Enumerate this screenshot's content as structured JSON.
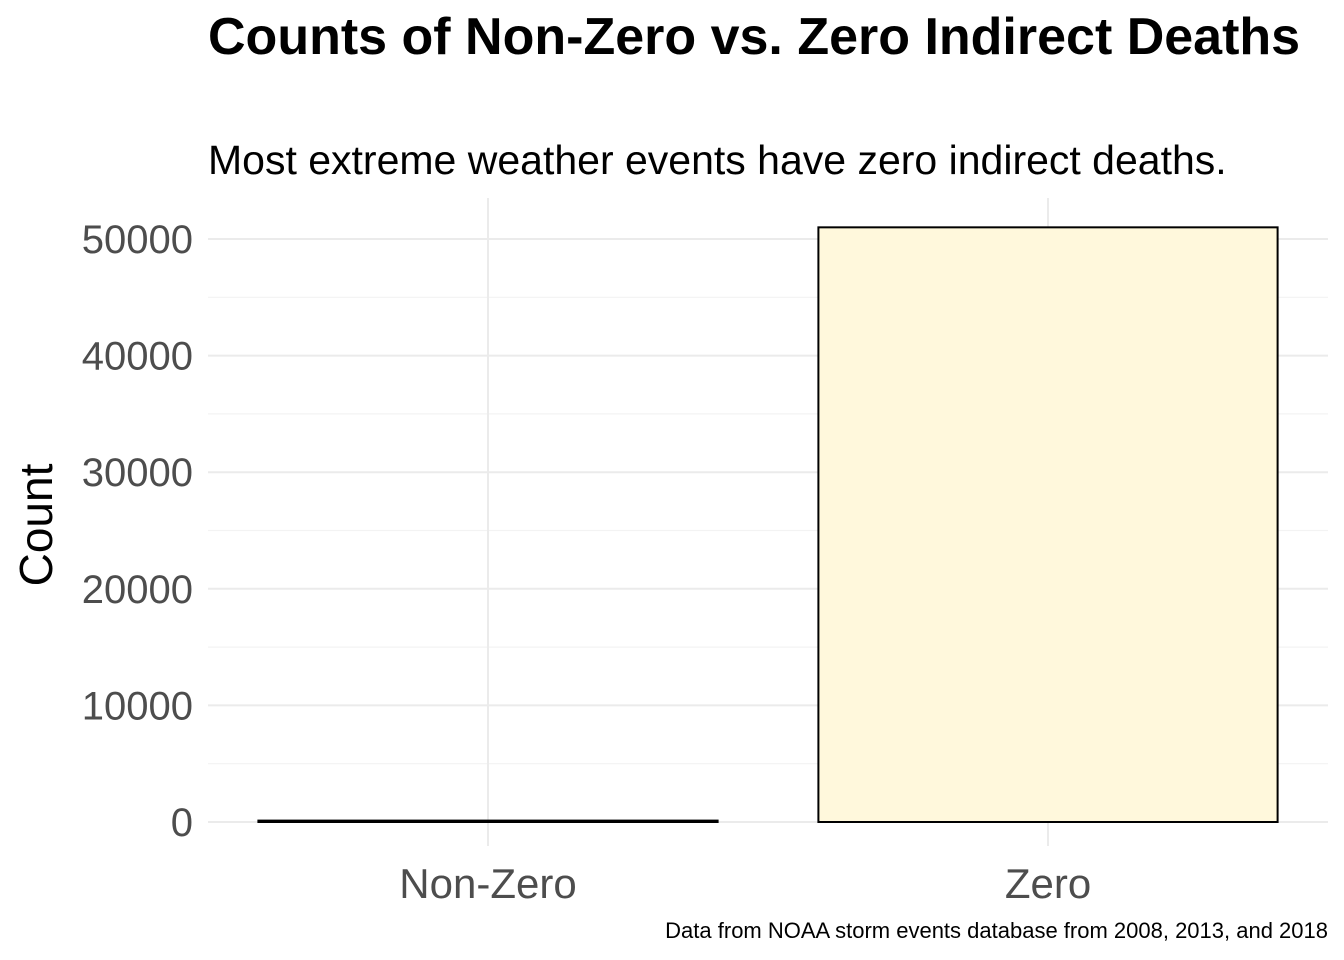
{
  "chart_data": {
    "type": "bar",
    "title": "Counts of Non-Zero vs. Zero Indirect Deaths",
    "subtitle": "Most extreme weather events have zero indirect deaths.",
    "xlabel": "",
    "ylabel": "Count",
    "caption": "Data from NOAA storm events database from 2008, 2013, and 2018",
    "categories": [
      "Non-Zero",
      "Zero"
    ],
    "values": [
      120,
      51000
    ],
    "ylim": [
      -2000,
      53500
    ],
    "yticks": [
      0,
      10000,
      20000,
      30000,
      40000,
      50000
    ],
    "bar_fill": "#fff8dc",
    "bar_stroke": "#000000",
    "grid": true,
    "legend": "none"
  }
}
